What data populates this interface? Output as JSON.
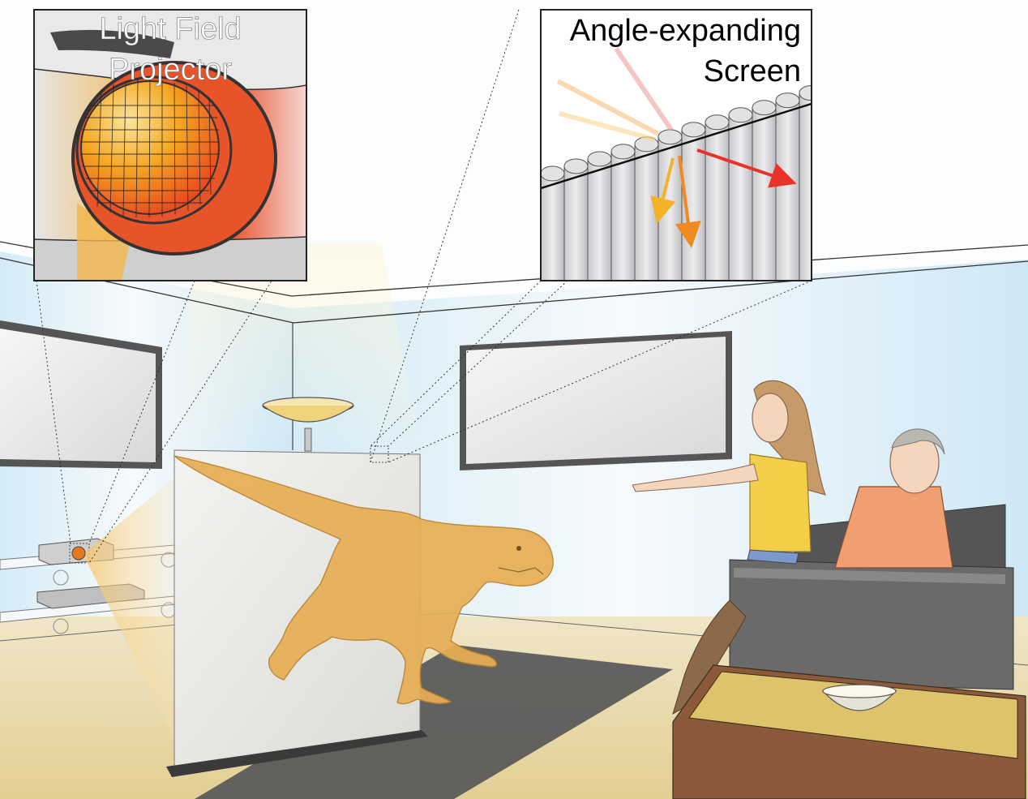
{
  "insets": {
    "projector": {
      "line1": "Light Field",
      "line2": "Projector"
    },
    "screen": {
      "line1": "Angle-expanding",
      "line2": "Screen"
    }
  },
  "colors": {
    "wall": "#dff0f8",
    "ceiling": "#fbfdfe",
    "floor": "#e8dcb2",
    "rug": "#5b5b5b",
    "dinosaur": "#e7ae55",
    "sofa": "#5a5a5a",
    "table": "#8a5a3a",
    "ray_red": "#e8322a",
    "ray_orange": "#f08a1e",
    "ray_yellow": "#f4b228"
  }
}
